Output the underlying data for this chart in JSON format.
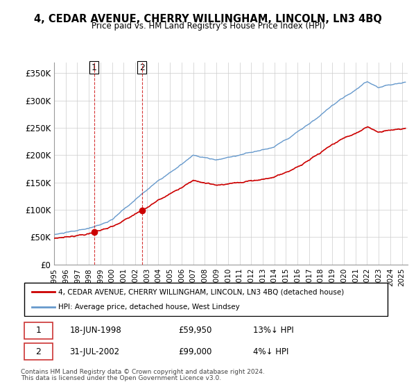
{
  "title": "4, CEDAR AVENUE, CHERRY WILLINGHAM, LINCOLN, LN3 4BQ",
  "subtitle": "Price paid vs. HM Land Registry's House Price Index (HPI)",
  "ylabel_ticks": [
    "£0",
    "£50K",
    "£100K",
    "£150K",
    "£200K",
    "£250K",
    "£300K",
    "£350K"
  ],
  "ytick_values": [
    0,
    50000,
    100000,
    150000,
    200000,
    250000,
    300000,
    350000
  ],
  "ylim": [
    0,
    370000
  ],
  "xlim_start": 1995.0,
  "xlim_end": 2025.5,
  "transaction1": {
    "date_num": 1998.46,
    "price": 59950,
    "label": "1",
    "date_str": "18-JUN-1998",
    "pct": "13%↓ HPI"
  },
  "transaction2": {
    "date_num": 2002.58,
    "price": 99000,
    "label": "2",
    "date_str": "31-JUL-2002",
    "pct": "4%↓ HPI"
  },
  "legend_line1": "4, CEDAR AVENUE, CHERRY WILLINGHAM, LINCOLN, LN3 4BQ (detached house)",
  "legend_line2": "HPI: Average price, detached house, West Lindsey",
  "footer1": "Contains HM Land Registry data © Crown copyright and database right 2024.",
  "footer2": "This data is licensed under the Open Government Licence v3.0.",
  "red_color": "#cc0000",
  "blue_color": "#6699cc",
  "bg_color": "#ffffff",
  "grid_color": "#cccccc"
}
